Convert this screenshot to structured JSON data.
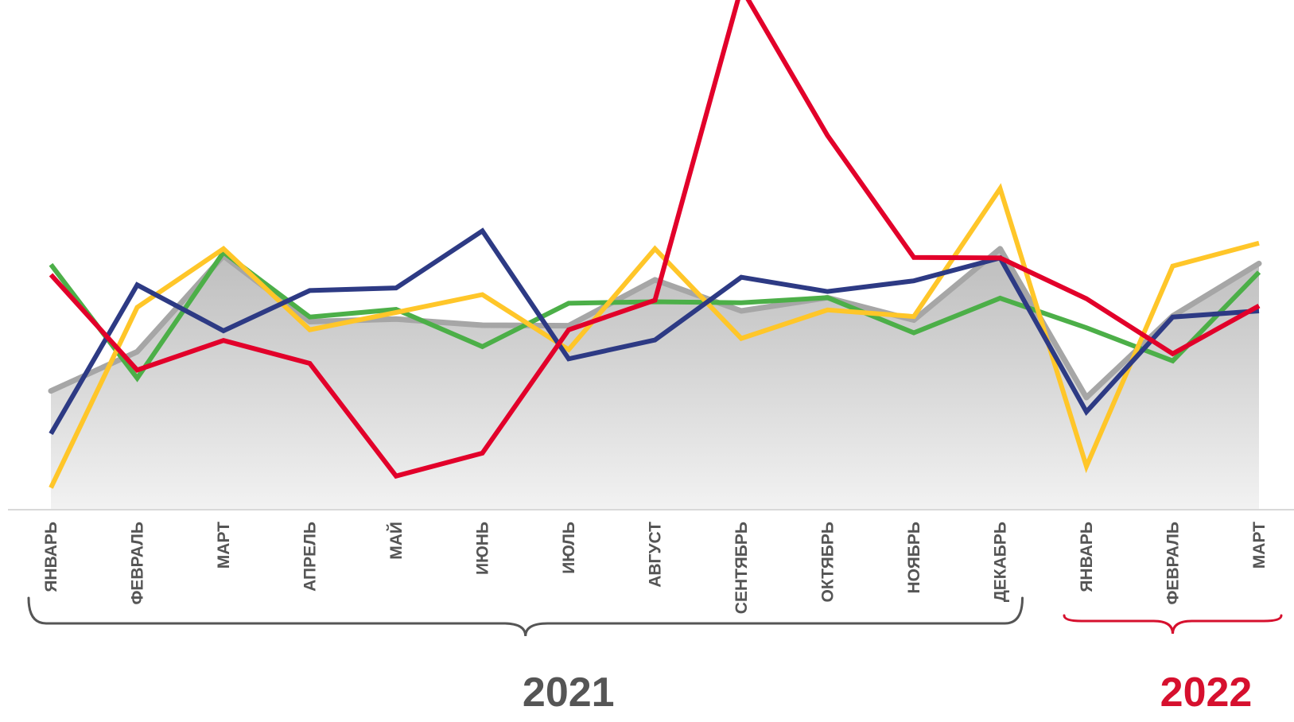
{
  "chart_data": {
    "type": "line",
    "categories": [
      "ЯНВАРЬ",
      "ФЕВРАЛЬ",
      "МАРТ",
      "АПРЕЛЬ",
      "МАЙ",
      "ИЮНЬ",
      "ИЮЛЬ",
      "АВГУСТ",
      "СЕНТЯБРЬ",
      "ОКТЯБРЬ",
      "НОЯБРЬ",
      "ДЕКАБРЬ",
      "ЯНВАРЬ",
      "ФЕВРАЛЬ",
      "МАРТ"
    ],
    "ylim": [
      0,
      100
    ],
    "grid": false,
    "legend": "none",
    "area_series": {
      "color": "#a6a6a6",
      "values": [
        23.3,
        31.0,
        49.8,
        36.9,
        37.4,
        36.2,
        36.1,
        45.1,
        39.0,
        41.6,
        37.2,
        51.2,
        22.0,
        38.0,
        48.3
      ]
    },
    "series": [
      {
        "color": "#4caf48",
        "values": [
          48.1,
          25.8,
          50.5,
          37.8,
          39.3,
          32.0,
          40.5,
          40.8,
          40.6,
          41.6,
          34.7,
          41.5,
          35.7,
          29.2,
          46.6
        ]
      },
      {
        "color": "#ffc629",
        "values": [
          4.3,
          39.7,
          51.2,
          35.3,
          38.7,
          42.2,
          31.4,
          51.2,
          33.6,
          39.2,
          37.9,
          63.0,
          8.5,
          47.8,
          52.3
        ]
      },
      {
        "color": "#2d3a84",
        "values": [
          14.9,
          44.1,
          35.1,
          43.0,
          43.5,
          54.7,
          29.6,
          33.3,
          45.6,
          42.8,
          44.9,
          49.4,
          19.2,
          37.8,
          39.0
        ]
      },
      {
        "color": "#e2002a",
        "values": [
          46.1,
          27.4,
          33.2,
          28.7,
          6.6,
          11.1,
          35.3,
          41.1,
          102.4,
          73.4,
          49.5,
          49.4,
          41.4,
          30.6,
          40.0
        ]
      }
    ],
    "groups": [
      {
        "label": "2021",
        "from": 0,
        "to": 11,
        "color": "#555555"
      },
      {
        "label": "2022",
        "from": 12,
        "to": 14,
        "color": "#d6102e"
      }
    ]
  }
}
